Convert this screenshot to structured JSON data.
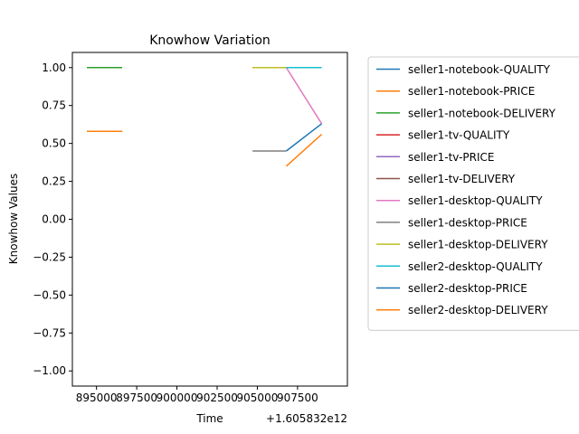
{
  "chart_data": {
    "type": "line",
    "title": "Knowhow Variation",
    "xlabel": "Time",
    "ylabel": "Knowhow Values",
    "x_offset_label": "+1.605832e12",
    "xlim": [
      893500,
      910600
    ],
    "ylim": [
      -1.1,
      1.1
    ],
    "x_ticks": [
      895000,
      897500,
      900000,
      902500,
      905000,
      907500
    ],
    "x_tick_labels": [
      "895000",
      "897500",
      "900000",
      "902500",
      "905000",
      "907500"
    ],
    "y_ticks": [
      1.0,
      0.75,
      0.5,
      0.25,
      0.0,
      -0.25,
      -0.5,
      -0.75,
      -1.0
    ],
    "y_tick_labels": [
      "1.00",
      "0.75",
      "0.50",
      "0.25",
      "0.00",
      "−0.25",
      "−0.50",
      "−0.75",
      "−1.00"
    ],
    "grid": false,
    "legend_position": "outside-right",
    "series": [
      {
        "name": "seller1-notebook-QUALITY",
        "color": "#1f77b4",
        "x": [
          894400,
          896600
        ],
        "y": [
          0.58,
          0.58
        ]
      },
      {
        "name": "seller1-notebook-PRICE",
        "color": "#ff7f0e",
        "x": [
          894400,
          896600
        ],
        "y": [
          0.58,
          0.58
        ]
      },
      {
        "name": "seller1-notebook-DELIVERY",
        "color": "#2ca02c",
        "x": [
          894400,
          896600
        ],
        "y": [
          1.0,
          1.0
        ]
      },
      {
        "name": "seller1-tv-QUALITY",
        "color": "#d62728",
        "x": [],
        "y": []
      },
      {
        "name": "seller1-tv-PRICE",
        "color": "#9467bd",
        "x": [],
        "y": []
      },
      {
        "name": "seller1-tv-DELIVERY",
        "color": "#8c564b",
        "x": [],
        "y": []
      },
      {
        "name": "seller1-desktop-QUALITY",
        "color": "#e377c2",
        "x": [
          904700,
          906800,
          909000
        ],
        "y": [
          1.0,
          1.0,
          0.63
        ]
      },
      {
        "name": "seller1-desktop-PRICE",
        "color": "#7f7f7f",
        "x": [
          904700,
          906800
        ],
        "y": [
          0.45,
          0.45
        ]
      },
      {
        "name": "seller1-desktop-DELIVERY",
        "color": "#bcbd22",
        "x": [
          904700,
          906800
        ],
        "y": [
          1.0,
          1.0
        ]
      },
      {
        "name": "seller2-desktop-QUALITY",
        "color": "#17becf",
        "x": [
          906800,
          909000
        ],
        "y": [
          1.0,
          1.0
        ]
      },
      {
        "name": "seller2-desktop-PRICE",
        "color": "#1f77b4",
        "x": [
          906800,
          909000
        ],
        "y": [
          0.45,
          0.63
        ]
      },
      {
        "name": "seller2-desktop-DELIVERY",
        "color": "#ff7f0e",
        "x": [
          906800,
          909000
        ],
        "y": [
          0.35,
          0.56
        ]
      }
    ]
  }
}
